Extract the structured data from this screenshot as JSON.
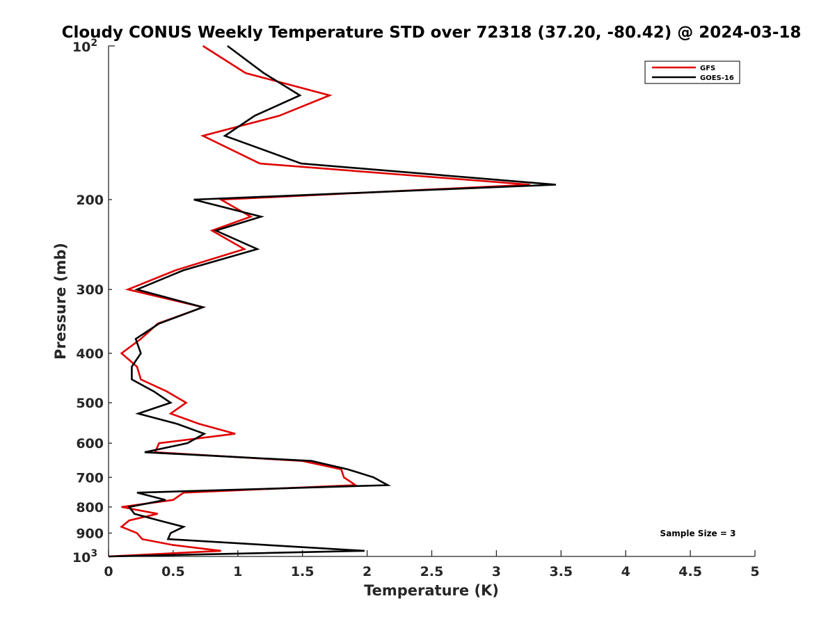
{
  "chart_data": {
    "type": "line",
    "title": "Cloudy CONUS Weekly Temperature STD over 72318 (37.20, -80.42) @ 2024-03-18",
    "xlabel": "Temperature (K)",
    "ylabel": "Pressure (mb)",
    "xlim": [
      0,
      5
    ],
    "ylim": [
      100,
      1000
    ],
    "yscale": "log",
    "yreversed": true,
    "x_ticks": [
      0,
      0.5,
      1,
      1.5,
      2,
      2.5,
      3,
      3.5,
      4,
      4.5,
      5
    ],
    "x_tick_labels": [
      "0",
      "0.5",
      "1",
      "1.5",
      "2",
      "2.5",
      "3",
      "3.5",
      "4",
      "4.5",
      "5"
    ],
    "y_ticks": [
      200,
      300,
      400,
      500,
      600,
      700,
      800,
      900
    ],
    "y_tick_labels": [
      "200",
      "300",
      "400",
      "500",
      "600",
      "700",
      "800",
      "900"
    ],
    "y_top_label": {
      "base": "10",
      "exp": "2"
    },
    "y_bottom_label": {
      "base": "10",
      "exp": "3"
    },
    "grid": false,
    "legend_position": "top-right",
    "annotation": "Sample Size = 3",
    "series": [
      {
        "name": "GFS",
        "color": "#e00000",
        "points": [
          [
            0.73,
            100
          ],
          [
            1.06,
            113
          ],
          [
            1.71,
            125
          ],
          [
            1.32,
            137
          ],
          [
            0.73,
            150
          ],
          [
            1.17,
            170
          ],
          [
            3.26,
            187
          ],
          [
            0.87,
            200
          ],
          [
            1.1,
            216
          ],
          [
            0.8,
            230
          ],
          [
            1.05,
            250
          ],
          [
            0.52,
            275
          ],
          [
            0.15,
            300
          ],
          [
            0.73,
            325
          ],
          [
            0.38,
            350
          ],
          [
            0.25,
            375
          ],
          [
            0.1,
            400
          ],
          [
            0.22,
            425
          ],
          [
            0.25,
            450
          ],
          [
            0.45,
            475
          ],
          [
            0.6,
            500
          ],
          [
            0.48,
            525
          ],
          [
            0.7,
            550
          ],
          [
            0.98,
            575
          ],
          [
            0.39,
            600
          ],
          [
            0.36,
            625
          ],
          [
            1.5,
            650
          ],
          [
            1.8,
            675
          ],
          [
            1.82,
            700
          ],
          [
            1.91,
            725
          ],
          [
            0.58,
            750
          ],
          [
            0.5,
            775
          ],
          [
            0.1,
            800
          ],
          [
            0.38,
            825
          ],
          [
            0.16,
            850
          ],
          [
            0.1,
            875
          ],
          [
            0.22,
            900
          ],
          [
            0.26,
            925
          ],
          [
            0.5,
            950
          ],
          [
            0.87,
            975
          ],
          [
            0,
            1000
          ]
        ]
      },
      {
        "name": "GOES-16",
        "color": "#000000",
        "points": [
          [
            0.92,
            100
          ],
          [
            1.2,
            113
          ],
          [
            1.48,
            125
          ],
          [
            1.13,
            137
          ],
          [
            0.9,
            150
          ],
          [
            1.49,
            170
          ],
          [
            3.46,
            187
          ],
          [
            0.66,
            200
          ],
          [
            1.18,
            216
          ],
          [
            0.83,
            230
          ],
          [
            1.15,
            250
          ],
          [
            0.58,
            275
          ],
          [
            0.22,
            300
          ],
          [
            0.73,
            325
          ],
          [
            0.39,
            350
          ],
          [
            0.21,
            375
          ],
          [
            0.25,
            400
          ],
          [
            0.18,
            425
          ],
          [
            0.18,
            450
          ],
          [
            0.35,
            475
          ],
          [
            0.48,
            500
          ],
          [
            0.23,
            525
          ],
          [
            0.53,
            550
          ],
          [
            0.74,
            575
          ],
          [
            0.61,
            600
          ],
          [
            0.28,
            625
          ],
          [
            1.57,
            650
          ],
          [
            1.85,
            675
          ],
          [
            2.05,
            700
          ],
          [
            2.16,
            725
          ],
          [
            0.22,
            750
          ],
          [
            0.44,
            775
          ],
          [
            0.16,
            800
          ],
          [
            0.2,
            825
          ],
          [
            0.39,
            850
          ],
          [
            0.58,
            875
          ],
          [
            0.48,
            900
          ],
          [
            0.46,
            925
          ],
          [
            1.98,
            975
          ],
          [
            0,
            1000
          ]
        ]
      }
    ]
  }
}
